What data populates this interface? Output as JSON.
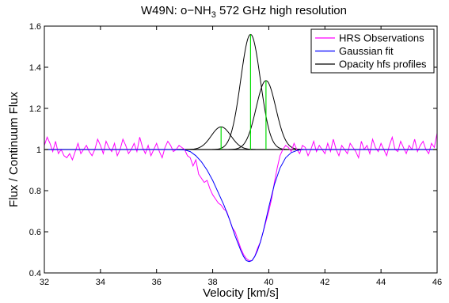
{
  "chart_data": {
    "type": "line",
    "title": "W49N: o−NH",
    "title_sub": "3",
    "title_rest": " 572 GHz high resolution",
    "xlabel": "Velocity [km/s]",
    "ylabel": "Flux / Continuum Flux",
    "xlim": [
      32,
      46
    ],
    "ylim": [
      0.4,
      1.6
    ],
    "xticks": [
      32,
      34,
      36,
      38,
      40,
      42,
      44,
      46
    ],
    "xtick_labels": [
      "32",
      "34",
      "36",
      "38",
      "40",
      "42",
      "44",
      "46"
    ],
    "yticks": [
      0.4,
      0.6,
      0.8,
      1.0,
      1.2,
      1.4,
      1.6
    ],
    "ytick_labels": [
      "0.4",
      "0.6",
      "0.8",
      "1",
      "1.2",
      "1.4",
      "1.6"
    ],
    "legend_position": "top-right",
    "baseline": 1.0,
    "series": [
      {
        "name": "HRS Observations",
        "color": "#ff00ff",
        "x": [
          32.0,
          32.1,
          32.2,
          32.3,
          32.4,
          32.5,
          32.6,
          32.7,
          32.8,
          32.9,
          33.0,
          33.1,
          33.2,
          33.3,
          33.4,
          33.5,
          33.6,
          33.7,
          33.8,
          33.9,
          34.0,
          34.1,
          34.2,
          34.3,
          34.4,
          34.5,
          34.6,
          34.7,
          34.8,
          34.9,
          35.0,
          35.1,
          35.2,
          35.3,
          35.4,
          35.5,
          35.6,
          35.7,
          35.8,
          35.9,
          36.0,
          36.1,
          36.2,
          36.3,
          36.4,
          36.5,
          36.6,
          36.7,
          36.8,
          36.9,
          37.0,
          37.1,
          37.2,
          37.3,
          37.4,
          37.5,
          37.6,
          37.7,
          37.8,
          37.9,
          38.0,
          38.1,
          38.2,
          38.3,
          38.4,
          38.5,
          38.6,
          38.7,
          38.8,
          38.9,
          39.0,
          39.1,
          39.2,
          39.3,
          39.4,
          39.5,
          39.6,
          39.7,
          39.8,
          39.9,
          40.0,
          40.1,
          40.2,
          40.3,
          40.4,
          40.5,
          40.6,
          40.7,
          40.8,
          40.9,
          41.0,
          41.1,
          41.2,
          41.3,
          41.4,
          41.5,
          41.6,
          41.7,
          41.8,
          41.9,
          42.0,
          42.1,
          42.2,
          42.3,
          42.4,
          42.5,
          42.6,
          42.7,
          42.8,
          42.9,
          43.0,
          43.1,
          43.2,
          43.3,
          43.4,
          43.5,
          43.6,
          43.7,
          43.8,
          43.9,
          44.0,
          44.1,
          44.2,
          44.3,
          44.4,
          44.5,
          44.6,
          44.7,
          44.8,
          44.9,
          45.0,
          45.1,
          45.2,
          45.3,
          45.4,
          45.5,
          45.6,
          45.7,
          45.8,
          45.9,
          46.0
        ],
        "y": [
          1.02,
          1.06,
          1.03,
          0.99,
          1.04,
          0.98,
          1.0,
          0.97,
          0.96,
          0.98,
          0.95,
          0.99,
          1.03,
          0.98,
          1.0,
          1.02,
          0.99,
          0.97,
          1.0,
          1.05,
          1.02,
          0.98,
          1.04,
          1.01,
          0.99,
          1.03,
          0.97,
          1.0,
          1.05,
          1.02,
          0.98,
          1.0,
          1.03,
          0.99,
          1.06,
          1.01,
          0.98,
          1.02,
          0.97,
          1.0,
          1.03,
          0.99,
          0.96,
          1.01,
          1.04,
          1.02,
          0.99,
          1.0,
          1.02,
          1.01,
          1.0,
          0.97,
          0.96,
          0.92,
          0.95,
          0.88,
          0.86,
          0.84,
          0.85,
          0.81,
          0.78,
          0.76,
          0.74,
          0.73,
          0.71,
          0.7,
          0.66,
          0.62,
          0.6,
          0.56,
          0.52,
          0.49,
          0.47,
          0.46,
          0.46,
          0.48,
          0.52,
          0.55,
          0.6,
          0.65,
          0.7,
          0.76,
          0.84,
          0.91,
          0.97,
          1.0,
          1.02,
          1.01,
          0.99,
          1.03,
          1.0,
          0.98,
          1.02,
          1.01,
          0.97,
          1.0,
          1.04,
          0.99,
          1.02,
          1.0,
          0.98,
          1.03,
          0.99,
          1.05,
          1.0,
          0.97,
          1.02,
          1.0,
          0.98,
          1.03,
          1.01,
          0.99,
          0.96,
          1.04,
          1.0,
          1.02,
          0.98,
          1.05,
          1.01,
          0.99,
          1.03,
          1.0,
          0.97,
          1.02,
          1.06,
          1.0,
          0.99,
          1.04,
          1.01,
          0.98,
          1.02,
          1.0,
          1.05,
          0.99,
          1.02,
          1.04,
          1.0,
          0.98,
          1.03,
          1.01,
          1.08
        ]
      },
      {
        "name": "Gaussian fit",
        "color": "#0000ff",
        "x": [
          32.0,
          32.5,
          33.0,
          33.5,
          34.0,
          34.5,
          35.0,
          35.5,
          36.0,
          36.5,
          37.0,
          37.2,
          37.4,
          37.6,
          37.8,
          38.0,
          38.2,
          38.4,
          38.6,
          38.8,
          39.0,
          39.1,
          39.2,
          39.3,
          39.4,
          39.5,
          39.6,
          39.7,
          39.8,
          39.9,
          40.0,
          40.2,
          40.4,
          40.6,
          40.8,
          41.0,
          41.2,
          41.5,
          42.0,
          43.0,
          44.0,
          45.0,
          46.0
        ],
        "y": [
          1.0,
          1.0,
          1.0,
          1.0,
          1.0,
          1.0,
          1.0,
          1.0,
          1.0,
          1.0,
          0.998,
          0.99,
          0.97,
          0.94,
          0.9,
          0.85,
          0.79,
          0.73,
          0.66,
          0.58,
          0.51,
          0.48,
          0.46,
          0.455,
          0.46,
          0.48,
          0.51,
          0.55,
          0.6,
          0.66,
          0.72,
          0.83,
          0.91,
          0.96,
          0.985,
          0.995,
          1.0,
          1.0,
          1.0,
          1.0,
          1.0,
          1.0,
          1.0
        ]
      },
      {
        "name": "Opacity hfs profiles",
        "color": "#000000",
        "components": [
          {
            "center": 38.3,
            "peak": 1.11,
            "sigma": 0.35
          },
          {
            "center": 39.35,
            "peak": 1.56,
            "sigma": 0.35
          },
          {
            "center": 39.9,
            "peak": 1.335,
            "sigma": 0.35
          }
        ]
      }
    ],
    "markers": {
      "color": "#00dd00",
      "lines": [
        {
          "x": 38.3,
          "y": 1.11
        },
        {
          "x": 39.35,
          "y": 1.56
        },
        {
          "x": 39.9,
          "y": 1.335
        }
      ]
    }
  }
}
